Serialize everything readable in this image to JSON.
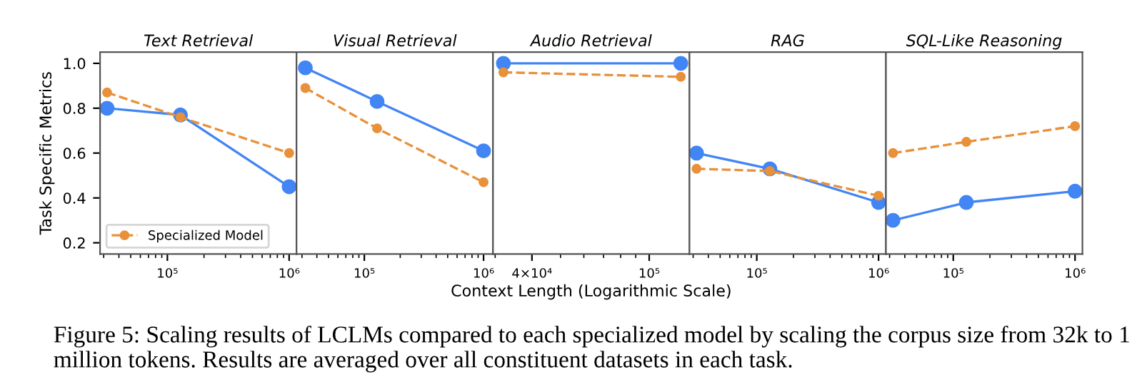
{
  "chart_data": [
    {
      "type": "line",
      "title": "Text Retrieval",
      "ylabel": "Task Specific Metrics",
      "x": [
        32000,
        128000,
        1000000
      ],
      "log": "x",
      "xlim": [
        28000,
        1150000
      ],
      "xticks": [
        {
          "value": 100000,
          "label": "10⁵"
        },
        {
          "value": 1000000,
          "label": "10⁶"
        }
      ],
      "ylim": [
        0.15,
        1.05
      ],
      "yticks": [
        0.2,
        0.4,
        0.6,
        0.8,
        {
          "value": 1.0,
          "label": "1.0"
        }
      ],
      "marker": "circle",
      "grid": false,
      "legend": "bottom left",
      "series": [
        {
          "color": "#4285f4",
          "line_style": "solid",
          "values": [
            0.8,
            0.77,
            0.45
          ]
        },
        {
          "name": "Specialized Model",
          "color": "#e8913a",
          "line_style": "dashed",
          "values": [
            0.87,
            0.76,
            0.6
          ]
        }
      ],
      "annotations": [
        "Figure 5: Scaling results of LCLMs compared to each specialized model by scaling the corpus size from 32k to 1 million tokens. Results are averaged over all constituent datasets in each task."
      ]
    },
    {
      "type": "line",
      "title": "Visual Retrieval",
      "x": [
        32000,
        128000,
        1000000
      ],
      "log": "x",
      "xlim": [
        27000,
        1200000
      ],
      "xticks": [
        {
          "value": 100000,
          "label": "10⁵"
        },
        {
          "value": 1000000,
          "label": "10⁶"
        }
      ],
      "ylim": [
        0.15,
        1.05
      ],
      "yticks": [
        0.2,
        0.4,
        0.6,
        0.8,
        1.0
      ],
      "tick_labels": "x",
      "marker": "circle",
      "grid": false,
      "series": [
        {
          "color": "#4285f4",
          "line_style": "solid",
          "values": [
            0.98,
            0.83,
            0.61
          ]
        },
        {
          "color": "#e8913a",
          "line_style": "dashed",
          "values": [
            0.89,
            0.71,
            0.47
          ]
        }
      ]
    },
    {
      "type": "line",
      "title": "Audio Retrieval",
      "xlabel": "Context Length (Logarithmic Scale)",
      "x": [
        32000,
        128000
      ],
      "log": "x",
      "xlim": [
        29500,
        137000
      ],
      "xticks": [
        {
          "value": 40000,
          "label": "4×10⁴"
        },
        {
          "value": 100000,
          "label": "10⁵"
        }
      ],
      "ylim": [
        0.15,
        1.05
      ],
      "yticks": [
        0.2,
        0.4,
        0.6,
        0.8,
        1.0
      ],
      "tick_labels": "x",
      "marker": "circle",
      "grid": false,
      "series": [
        {
          "color": "#4285f4",
          "line_style": "solid",
          "values": [
            1.0,
            1.0
          ]
        },
        {
          "color": "#e8913a",
          "line_style": "dashed",
          "values": [
            0.96,
            0.94
          ]
        }
      ]
    },
    {
      "type": "line",
      "title": "RAG",
      "x": [
        32000,
        128000,
        1000000
      ],
      "log": "x",
      "xlim": [
        28000,
        1150000
      ],
      "xticks": [
        {
          "value": 100000,
          "label": "10⁵"
        },
        {
          "value": 1000000,
          "label": "10⁶"
        }
      ],
      "ylim": [
        0.15,
        1.05
      ],
      "yticks": [
        0.2,
        0.4,
        0.6,
        0.8,
        1.0
      ],
      "tick_labels": "x",
      "marker": "circle",
      "grid": false,
      "series": [
        {
          "color": "#4285f4",
          "line_style": "solid",
          "values": [
            0.6,
            0.53,
            0.38
          ]
        },
        {
          "color": "#e8913a",
          "line_style": "dashed",
          "values": [
            0.53,
            0.52,
            0.41
          ]
        }
      ]
    },
    {
      "type": "line",
      "title": "SQL-Like Reasoning",
      "x": [
        32000,
        128000,
        1000000
      ],
      "log": "x",
      "xlim": [
        28000,
        1150000
      ],
      "xticks": [
        {
          "value": 100000,
          "label": "10⁵"
        },
        {
          "value": 1000000,
          "label": "10⁶"
        }
      ],
      "ylim": [
        0.15,
        1.05
      ],
      "yticks": [
        0.2,
        0.4,
        0.6,
        0.8,
        1.0
      ],
      "tick_labels": "x",
      "marker": "circle",
      "grid": false,
      "series": [
        {
          "color": "#4285f4",
          "line_style": "solid",
          "values": [
            0.3,
            0.38,
            0.43
          ]
        },
        {
          "color": "#e8913a",
          "line_style": "dashed",
          "values": [
            0.6,
            0.65,
            0.72
          ]
        }
      ]
    }
  ]
}
